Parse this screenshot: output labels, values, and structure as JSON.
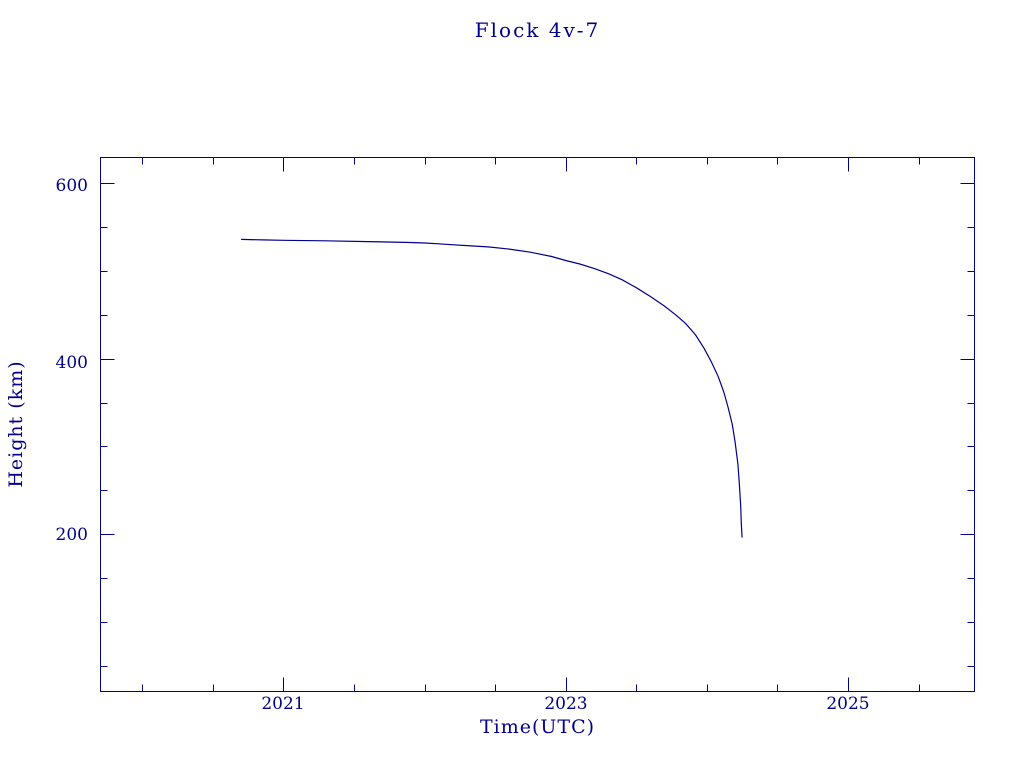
{
  "colors": {
    "axis": "#00008B",
    "line": "#00008B",
    "background": "#ffffff"
  },
  "chart_data": {
    "type": "line",
    "title": "Flock 4v-7",
    "xlabel": "Time(UTC)",
    "ylabel": "Height (km)",
    "xlim": [
      2019.7,
      2025.9
    ],
    "ylim": [
      20,
      630
    ],
    "xticks_major": [
      2021,
      2023,
      2025
    ],
    "xtick_minor_interval": 0.5,
    "xtick_labels": [
      "2021",
      "2023",
      "2025"
    ],
    "yticks_major": [
      600,
      400,
      200
    ],
    "ytick_minor_interval": 50,
    "ytick_labels": [
      "600",
      "400",
      "200"
    ],
    "grid": false,
    "legend": "none",
    "points": [
      [
        2020.7,
        536
      ],
      [
        2020.85,
        535.5
      ],
      [
        2021.0,
        535
      ],
      [
        2021.3,
        534.5
      ],
      [
        2021.6,
        533.5
      ],
      [
        2021.9,
        532.5
      ],
      [
        2022.0,
        532
      ],
      [
        2022.1,
        531
      ],
      [
        2022.15,
        530.5
      ],
      [
        2022.3,
        529
      ],
      [
        2022.45,
        527.5
      ],
      [
        2022.6,
        525
      ],
      [
        2022.75,
        521.5
      ],
      [
        2022.9,
        516.5
      ],
      [
        2023.0,
        512
      ],
      [
        2023.1,
        508
      ],
      [
        2023.2,
        503
      ],
      [
        2023.3,
        497
      ],
      [
        2023.4,
        490
      ],
      [
        2023.5,
        481
      ],
      [
        2023.6,
        471
      ],
      [
        2023.7,
        460
      ],
      [
        2023.78,
        450
      ],
      [
        2023.85,
        440
      ],
      [
        2023.92,
        427
      ],
      [
        2023.98,
        412
      ],
      [
        2024.03,
        397
      ],
      [
        2024.08,
        380
      ],
      [
        2024.12,
        362
      ],
      [
        2024.15,
        345
      ],
      [
        2024.18,
        325
      ],
      [
        2024.2,
        305
      ],
      [
        2024.22,
        280
      ],
      [
        2024.23,
        258
      ],
      [
        2024.24,
        232
      ],
      [
        2024.245,
        210
      ],
      [
        2024.25,
        196
      ]
    ]
  }
}
